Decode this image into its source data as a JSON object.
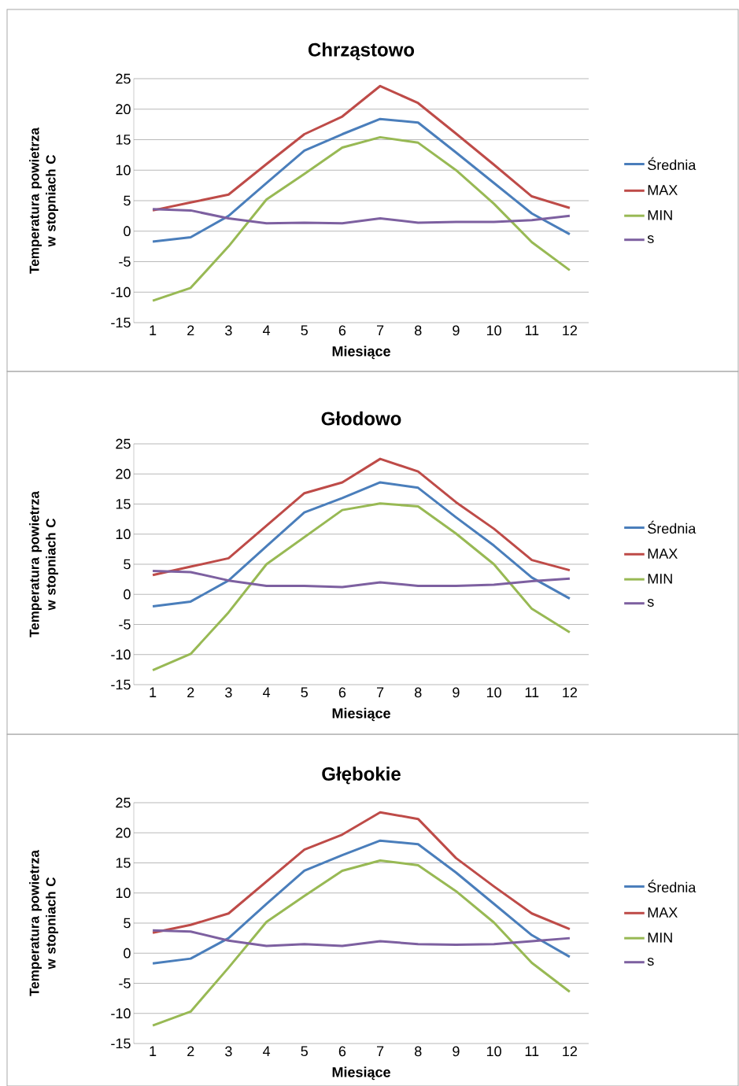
{
  "chart_data": [
    {
      "type": "line",
      "title": "Chrząstowo",
      "xlabel": "Miesiące",
      "ylabel": "Temperatura powietrza w stopniach C",
      "categories": [
        "1",
        "2",
        "3",
        "4",
        "5",
        "6",
        "7",
        "8",
        "9",
        "10",
        "11",
        "12"
      ],
      "ylim": [
        -15,
        25
      ],
      "yticks": [
        -15,
        -10,
        -5,
        0,
        5,
        10,
        15,
        20,
        25
      ],
      "grid": "y",
      "legend": "right",
      "series": [
        {
          "name": "Średnia",
          "color": "#4a7ebb",
          "values": [
            -1.7,
            -1.0,
            2.5,
            7.9,
            13.2,
            15.9,
            18.4,
            17.8,
            12.9,
            7.9,
            2.9,
            -0.5
          ]
        },
        {
          "name": "MAX",
          "color": "#be4b48",
          "values": [
            3.4,
            4.7,
            6.0,
            11.0,
            15.9,
            18.8,
            23.8,
            21.0,
            16.0,
            10.9,
            5.7,
            3.8
          ]
        },
        {
          "name": "MIN",
          "color": "#98b954",
          "values": [
            -11.4,
            -9.3,
            -2.5,
            5.2,
            9.4,
            13.7,
            15.4,
            14.5,
            10.0,
            4.5,
            -1.8,
            -6.4
          ]
        },
        {
          "name": "s",
          "color": "#7d60a0",
          "values": [
            3.6,
            3.4,
            2.1,
            1.3,
            1.4,
            1.3,
            2.1,
            1.4,
            1.5,
            1.5,
            1.8,
            2.5
          ]
        }
      ]
    },
    {
      "type": "line",
      "title": "Głodowo",
      "xlabel": "Miesiące",
      "ylabel": "Temperatura powietrza w stopniach C",
      "categories": [
        "1",
        "2",
        "3",
        "4",
        "5",
        "6",
        "7",
        "8",
        "9",
        "10",
        "11",
        "12"
      ],
      "ylim": [
        -15,
        25
      ],
      "yticks": [
        -15,
        -10,
        -5,
        0,
        5,
        10,
        15,
        20,
        25
      ],
      "grid": "y",
      "legend": "right",
      "series": [
        {
          "name": "Średnia",
          "color": "#4a7ebb",
          "values": [
            -2.0,
            -1.2,
            2.3,
            8.0,
            13.6,
            16.0,
            18.6,
            17.7,
            12.8,
            8.1,
            2.8,
            -0.7
          ]
        },
        {
          "name": "MAX",
          "color": "#be4b48",
          "values": [
            3.2,
            4.6,
            6.0,
            11.4,
            16.8,
            18.6,
            22.5,
            20.4,
            15.3,
            10.9,
            5.7,
            4.0
          ]
        },
        {
          "name": "MIN",
          "color": "#98b954",
          "values": [
            -12.6,
            -9.9,
            -3.0,
            5.0,
            9.5,
            14.0,
            15.1,
            14.6,
            10.1,
            5.0,
            -2.4,
            -6.3
          ]
        },
        {
          "name": "s",
          "color": "#7d60a0",
          "values": [
            3.9,
            3.7,
            2.3,
            1.4,
            1.4,
            1.2,
            2.0,
            1.4,
            1.4,
            1.6,
            2.2,
            2.6
          ]
        }
      ]
    },
    {
      "type": "line",
      "title": "Głębokie",
      "xlabel": "Miesiące",
      "ylabel": "Temperatura powietrza w stopniach C",
      "categories": [
        "1",
        "2",
        "3",
        "4",
        "5",
        "6",
        "7",
        "8",
        "9",
        "10",
        "11",
        "12"
      ],
      "ylim": [
        -15,
        25
      ],
      "yticks": [
        -15,
        -10,
        -5,
        0,
        5,
        10,
        15,
        20,
        25
      ],
      "grid": "y",
      "legend": "right",
      "series": [
        {
          "name": "Średnia",
          "color": "#4a7ebb",
          "values": [
            -1.7,
            -0.9,
            2.5,
            8.2,
            13.7,
            16.3,
            18.7,
            18.1,
            13.4,
            8.2,
            3.0,
            -0.6
          ]
        },
        {
          "name": "MAX",
          "color": "#be4b48",
          "values": [
            3.4,
            4.7,
            6.6,
            11.9,
            17.2,
            19.7,
            23.4,
            22.3,
            15.8,
            11.1,
            6.6,
            4.0
          ]
        },
        {
          "name": "MIN",
          "color": "#98b954",
          "values": [
            -12.0,
            -9.7,
            -2.4,
            5.2,
            9.5,
            13.7,
            15.4,
            14.6,
            10.3,
            5.1,
            -1.6,
            -6.4
          ]
        },
        {
          "name": "s",
          "color": "#7d60a0",
          "values": [
            3.8,
            3.6,
            2.1,
            1.2,
            1.5,
            1.2,
            2.0,
            1.5,
            1.4,
            1.5,
            2.0,
            2.5
          ]
        }
      ]
    }
  ]
}
